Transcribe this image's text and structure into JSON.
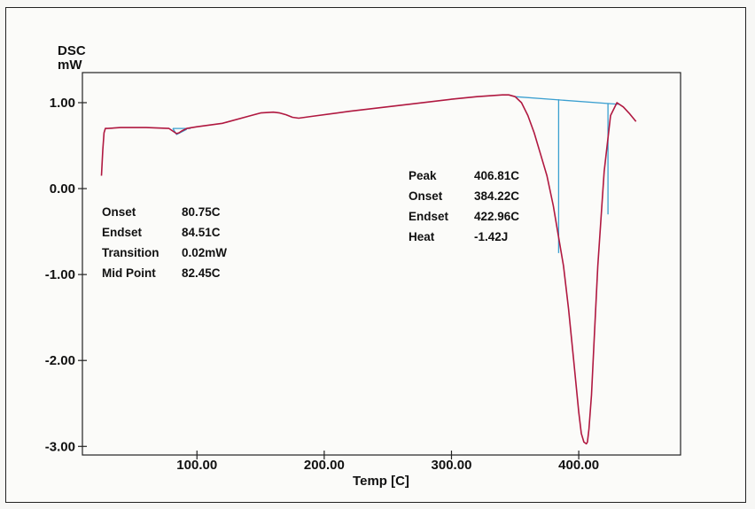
{
  "chart_data": {
    "type": "line",
    "ylabel": "DSC",
    "yunit": "mW",
    "xlabel": "Temp  [C]",
    "xlim": [
      10,
      480
    ],
    "ylim": [
      -3.1,
      1.35
    ],
    "x_ticks": [
      100,
      200,
      300,
      400
    ],
    "x_tick_labels": [
      "100.00",
      "200.00",
      "300.00",
      "400.00"
    ],
    "y_ticks": [
      1,
      0,
      -1,
      -2,
      -3
    ],
    "y_tick_labels": [
      "1.00",
      "0.00",
      "-1.00",
      "-2.00",
      "-3.00"
    ],
    "grid": false,
    "colors": {
      "curve": "#b01840",
      "baseline": "#3a9fd0",
      "axis": "#222222"
    },
    "series": [
      {
        "x": [
          25,
          26,
          27,
          28,
          30,
          40,
          60,
          78,
          82,
          84,
          86,
          88,
          92,
          100,
          120,
          140,
          150,
          160,
          165,
          170,
          175,
          180,
          190,
          220,
          260,
          300,
          320,
          340,
          345,
          350,
          355,
          360,
          365,
          370,
          375,
          380,
          384,
          388,
          392,
          396,
          400,
          402,
          404,
          406,
          406.8,
          408,
          410,
          412,
          415,
          420,
          425,
          430,
          435,
          440,
          445
        ],
        "y": [
          0.15,
          0.45,
          0.65,
          0.7,
          0.7,
          0.71,
          0.71,
          0.7,
          0.66,
          0.64,
          0.65,
          0.67,
          0.7,
          0.72,
          0.76,
          0.84,
          0.88,
          0.89,
          0.88,
          0.86,
          0.83,
          0.82,
          0.84,
          0.9,
          0.97,
          1.04,
          1.07,
          1.09,
          1.09,
          1.07,
          1.0,
          0.85,
          0.65,
          0.4,
          0.15,
          -0.2,
          -0.55,
          -0.9,
          -1.4,
          -2.0,
          -2.6,
          -2.85,
          -2.95,
          -2.97,
          -2.95,
          -2.8,
          -2.4,
          -1.8,
          -0.9,
          0.2,
          0.85,
          1.0,
          0.95,
          0.87,
          0.78
        ]
      }
    ],
    "baselines": [
      {
        "x": [
          81,
          95
        ],
        "y": [
          0.7,
          0.7
        ]
      },
      {
        "x": [
          350,
          432
        ],
        "y": [
          1.07,
          0.98
        ]
      }
    ],
    "vertical_markers": [
      {
        "x": [
          384.22,
          384.22
        ],
        "y": [
          1.04,
          -0.75
        ]
      },
      {
        "x": [
          422.96,
          422.96
        ],
        "y": [
          0.99,
          -0.3
        ]
      }
    ]
  },
  "annotations": {
    "glass": [
      {
        "label": "Onset",
        "value": "80.75C"
      },
      {
        "label": "Endset",
        "value": "84.51C"
      },
      {
        "label": "Transition",
        "value": "0.02mW"
      },
      {
        "label": "Mid Point",
        "value": "82.45C"
      }
    ],
    "peak": [
      {
        "label": "Peak",
        "value": "406.81C"
      },
      {
        "label": "Onset",
        "value": "384.22C"
      },
      {
        "label": "Endset",
        "value": "422.96C"
      },
      {
        "label": "Heat",
        "value": "-1.42J"
      }
    ]
  }
}
